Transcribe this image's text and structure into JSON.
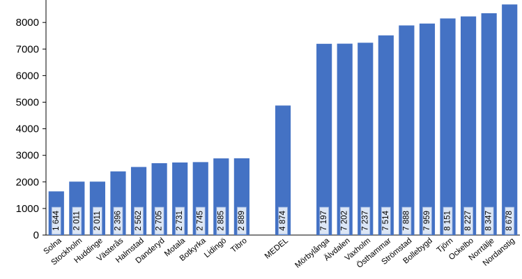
{
  "chart_data": {
    "type": "bar",
    "title": "",
    "xlabel": "",
    "ylabel": "",
    "ylim": [
      0,
      9000
    ],
    "yticks": [
      0,
      1000,
      2000,
      3000,
      4000,
      5000,
      6000,
      7000,
      8000
    ],
    "grid": false,
    "legend": "none",
    "bar_color": "#4472C4",
    "label_box_color": "#DCE6F5",
    "label_box_border": "#8EA9DB",
    "categories": [
      "Solna",
      "Stockholm",
      "Huddinge",
      "Västerås",
      "Halmstad",
      "Danderyd",
      "Motala",
      "Botkyrka",
      "Lidingö",
      "Tibro",
      "",
      "MEDEL",
      "",
      "Mörbylånga",
      "Älvdalen",
      "Vaxholm",
      "Östhammar",
      "Strömstad",
      "Bollebygd",
      "Tjörn",
      "Ockelbo",
      "Norrtälje",
      "Nordanstig"
    ],
    "values": [
      1644,
      2011,
      2011,
      2396,
      2562,
      2705,
      2731,
      2745,
      2885,
      2889,
      null,
      4874,
      null,
      7197,
      7202,
      7237,
      7514,
      7888,
      7959,
      8151,
      8227,
      8347,
      8678
    ],
    "value_labels": [
      "1 644",
      "2 011",
      "2 011",
      "2 396",
      "2 562",
      "2 705",
      "2 731",
      "2 745",
      "2 885",
      "2 889",
      "",
      "4 874",
      "",
      "7 197",
      "7 202",
      "7 237",
      "7 514",
      "7 888",
      "7 959",
      "8 151",
      "8 227",
      "8 347",
      "8 678"
    ]
  }
}
